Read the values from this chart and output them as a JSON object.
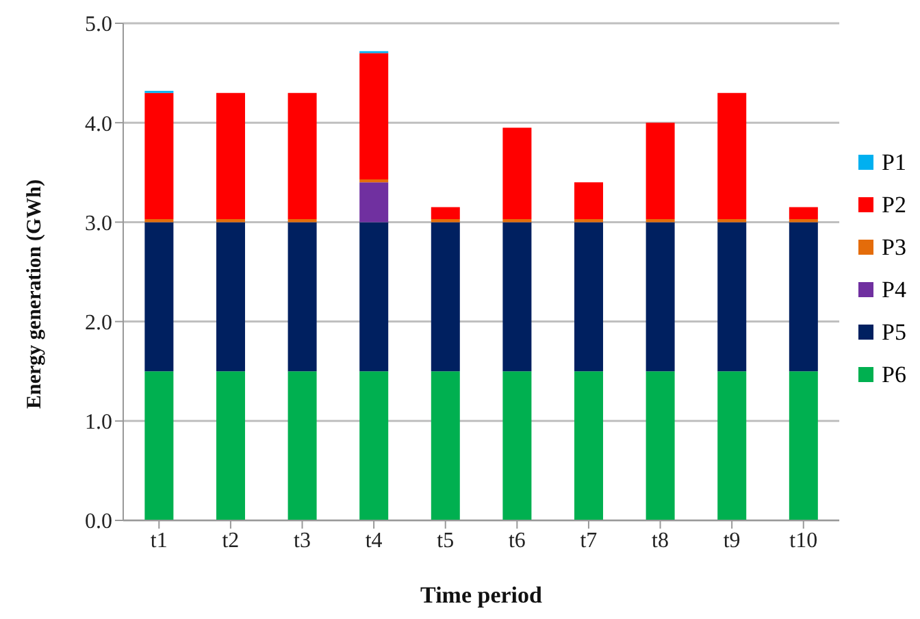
{
  "chart_data": {
    "type": "bar",
    "stacked": true,
    "xlabel": "Time period",
    "ylabel": "Energy generation (GWh)",
    "categories": [
      "t1",
      "t2",
      "t3",
      "t4",
      "t5",
      "t6",
      "t7",
      "t8",
      "t9",
      "t10"
    ],
    "series": [
      {
        "name": "P6",
        "color": "#00b050",
        "values": [
          1.5,
          1.5,
          1.5,
          1.5,
          1.5,
          1.5,
          1.5,
          1.5,
          1.5,
          1.5
        ]
      },
      {
        "name": "P5",
        "color": "#002060",
        "values": [
          1.5,
          1.5,
          1.5,
          1.5,
          1.5,
          1.5,
          1.5,
          1.5,
          1.5,
          1.5
        ]
      },
      {
        "name": "P4",
        "color": "#7030a0",
        "values": [
          0,
          0,
          0,
          0.4,
          0,
          0,
          0,
          0,
          0,
          0
        ]
      },
      {
        "name": "P3",
        "color": "#e46c0a",
        "values": [
          0.03,
          0.03,
          0.03,
          0.03,
          0.03,
          0.03,
          0.03,
          0.03,
          0.03,
          0.03
        ]
      },
      {
        "name": "P2",
        "color": "#ff0000",
        "values": [
          1.27,
          1.27,
          1.27,
          1.27,
          0.12,
          0.92,
          0.37,
          0.97,
          1.27,
          0.12
        ]
      },
      {
        "name": "P1",
        "color": "#00b0f0",
        "values": [
          0.02,
          0,
          0,
          0.02,
          0,
          0,
          0,
          0,
          0,
          0
        ]
      }
    ],
    "ylim": [
      0,
      5
    ],
    "yticks": [
      {
        "value": 0,
        "label": "0.0"
      },
      {
        "value": 1,
        "label": "1.0"
      },
      {
        "value": 2,
        "label": "2.0"
      },
      {
        "value": 3,
        "label": "3.0"
      },
      {
        "value": 4,
        "label": "4.0"
      },
      {
        "value": 5,
        "label": "5.0"
      }
    ],
    "grid": "y",
    "legend": "right"
  }
}
